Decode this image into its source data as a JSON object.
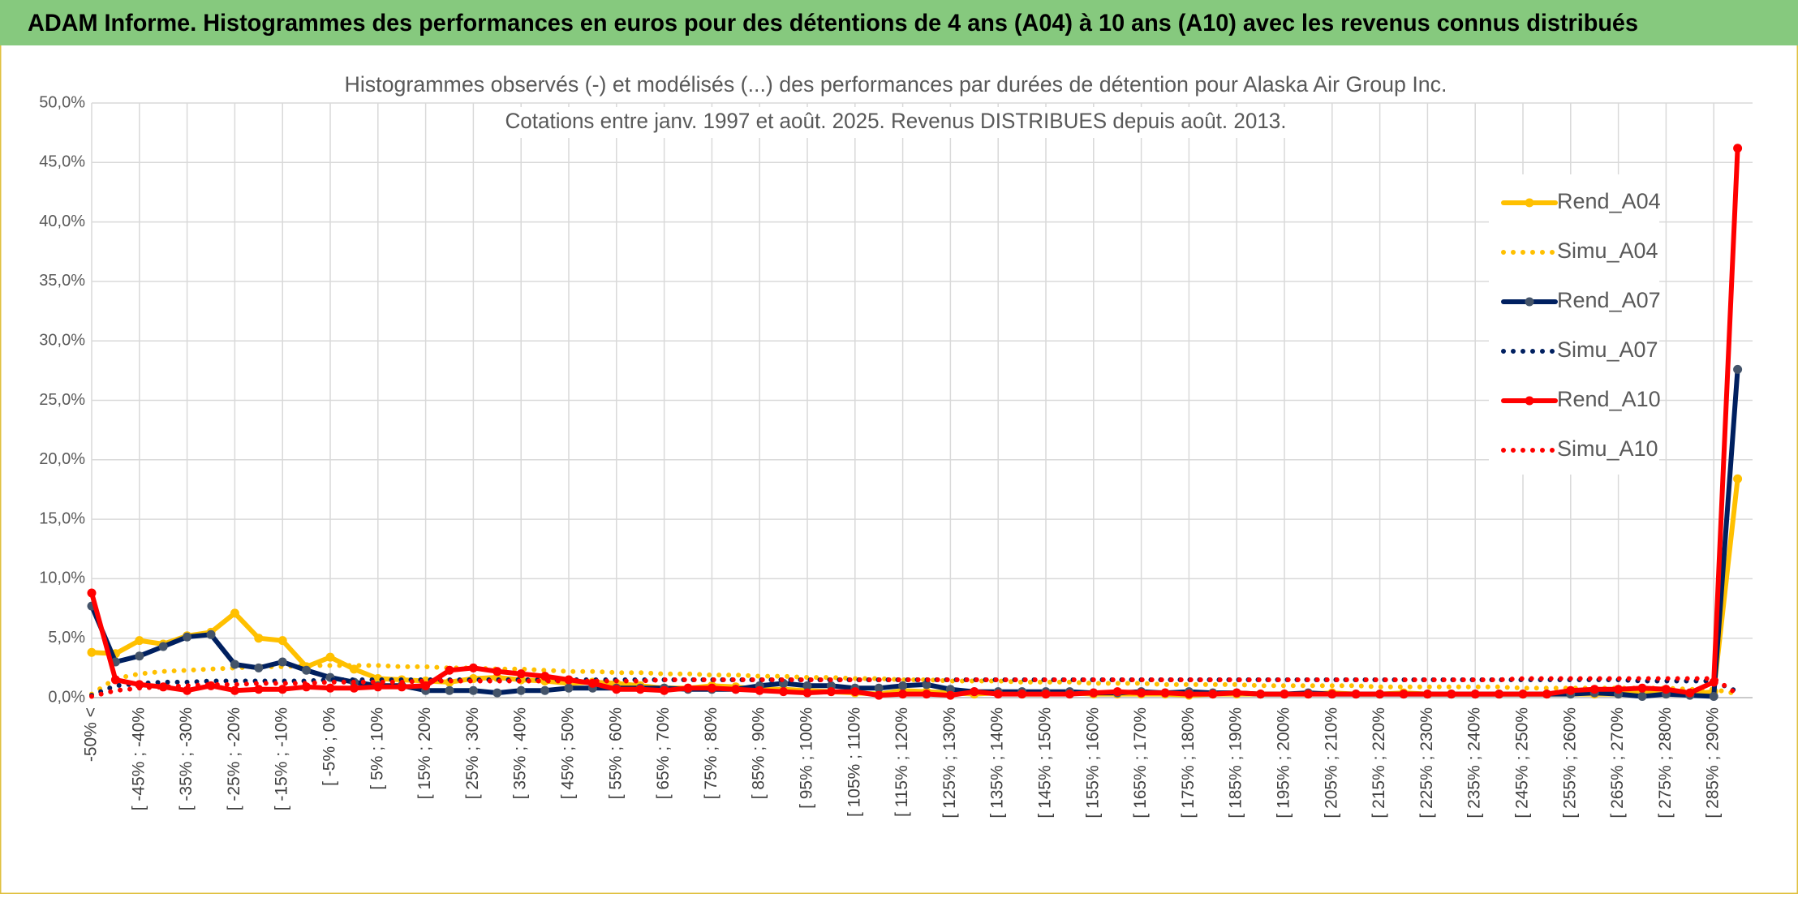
{
  "banner": "ADAM Informe. Histogrammes des performances en euros pour des détentions de 4 ans (A04) à 10 ans (A10) avec les revenus connus distribués",
  "chart_data": {
    "type": "line",
    "title": "Histogrammes observés (-) et modélisés (...) des performances par durées de détention pour Alaska Air Group Inc.",
    "subtitle": "Cotations entre janv. 1997 et août. 2025. Revenus DISTRIBUES depuis août. 2013.",
    "categories": [
      "-50% <",
      null,
      "[ -45% ; -40%",
      null,
      "[ -35% ; -30%",
      null,
      "[ -25% ; -20%",
      null,
      "[ -15% ; -10%",
      null,
      "[ -5% ; 0%",
      null,
      "[ 5% ; 10%",
      null,
      "[ 15% ; 20%",
      null,
      "[ 25% ; 30%",
      null,
      "[ 35% ; 40%",
      null,
      "[ 45% ; 50%",
      null,
      "[ 55% ; 60%",
      null,
      "[ 65% ; 70%",
      null,
      "[ 75% ; 80%",
      null,
      "[ 85% ; 90%",
      null,
      "[ 95% ; 100%",
      null,
      "[ 105% ; 110%",
      null,
      "[ 115% ; 120%",
      null,
      "[ 125% ; 130%",
      null,
      "[ 135% ; 140%",
      null,
      "[ 145% ; 150%",
      null,
      "[ 155% ; 160%",
      null,
      "[ 165% ; 170%",
      null,
      "[ 175% ; 180%",
      null,
      "[ 185% ; 190%",
      null,
      "[ 195% ; 200%",
      null,
      "[ 205% ; 210%",
      null,
      "[ 215% ; 220%",
      null,
      "[ 225% ; 230%",
      null,
      "[ 235% ; 240%",
      null,
      "[ 245% ; 250%",
      null,
      "[ 255% ; 260%",
      null,
      "[ 265% ; 270%",
      null,
      "[ 275% ; 280%",
      null,
      "[ 285% ; 290%",
      null
    ],
    "ylim": [
      0,
      50
    ],
    "yticks": [
      {
        "value": 0,
        "label": "0,0%"
      },
      {
        "value": 5,
        "label": "5,0%"
      },
      {
        "value": 10,
        "label": "10,0%"
      },
      {
        "value": 15,
        "label": "15,0%"
      },
      {
        "value": 20,
        "label": "20,0%"
      },
      {
        "value": 25,
        "label": "25,0%"
      },
      {
        "value": 30,
        "label": "30,0%"
      },
      {
        "value": 35,
        "label": "35,0%"
      },
      {
        "value": 40,
        "label": "40,0%"
      },
      {
        "value": 45,
        "label": "45,0%"
      },
      {
        "value": 50,
        "label": "50,0%"
      }
    ],
    "grid": true,
    "legend": "right",
    "series": [
      {
        "name": "Rend_A04",
        "color": "#FFC000",
        "marker_color": "#FFC000",
        "line_style": "solid",
        "values": [
          3.8,
          3.7,
          4.8,
          4.5,
          5.2,
          5.5,
          7.1,
          5.0,
          4.8,
          2.6,
          3.4,
          2.4,
          1.6,
          1.5,
          1.4,
          1.3,
          1.6,
          1.7,
          1.5,
          1.4,
          1.2,
          1.3,
          1.2,
          1.0,
          0.8,
          0.8,
          1.0,
          0.9,
          0.7,
          0.7,
          0.6,
          0.5,
          0.4,
          0.3,
          0.6,
          0.5,
          0.4,
          0.3,
          0.4,
          0.3,
          0.3,
          0.4,
          0.3,
          0.3,
          0.3,
          0.3,
          0.2,
          0.3,
          0.3,
          0.3,
          0.3,
          0.3,
          0.4,
          0.3,
          0.3,
          0.4,
          0.3,
          0.3,
          0.3,
          0.3,
          0.3,
          0.3,
          0.3,
          0.3,
          0.3,
          0.4,
          0.3,
          0.3,
          0.5,
          18.4
        ]
      },
      {
        "name": "Simu_A04",
        "color": "#FFC000",
        "line_style": "dotted",
        "values": [
          0.3,
          1.6,
          2.0,
          2.2,
          2.3,
          2.4,
          2.5,
          2.6,
          2.6,
          2.7,
          2.7,
          2.7,
          2.7,
          2.6,
          2.6,
          2.5,
          2.5,
          2.4,
          2.4,
          2.3,
          2.2,
          2.2,
          2.1,
          2.1,
          2.0,
          2.0,
          1.9,
          1.9,
          1.8,
          1.8,
          1.7,
          1.7,
          1.6,
          1.6,
          1.5,
          1.5,
          1.4,
          1.4,
          1.4,
          1.3,
          1.3,
          1.3,
          1.2,
          1.2,
          1.2,
          1.1,
          1.1,
          1.1,
          1.1,
          1.0,
          1.0,
          1.0,
          1.0,
          1.0,
          0.9,
          0.9,
          0.9,
          0.9,
          0.9,
          0.9,
          0.8,
          0.8,
          0.8,
          0.8,
          0.8,
          0.8,
          0.8,
          0.7,
          0.7,
          0.3
        ]
      },
      {
        "name": "Rend_A07",
        "color": "#002060",
        "marker_color": "#44546A",
        "line_style": "solid",
        "values": [
          7.7,
          3.0,
          3.5,
          4.3,
          5.1,
          5.3,
          2.8,
          2.5,
          3.0,
          2.3,
          1.7,
          1.3,
          1.0,
          1.0,
          0.6,
          0.6,
          0.6,
          0.4,
          0.6,
          0.6,
          0.8,
          0.8,
          0.8,
          0.8,
          0.8,
          0.7,
          0.7,
          0.7,
          1.0,
          1.2,
          1.0,
          1.0,
          0.8,
          0.8,
          1.0,
          1.1,
          0.7,
          0.5,
          0.5,
          0.5,
          0.5,
          0.5,
          0.4,
          0.4,
          0.5,
          0.4,
          0.5,
          0.4,
          0.4,
          0.3,
          0.3,
          0.4,
          0.3,
          0.3,
          0.3,
          0.3,
          0.3,
          0.3,
          0.3,
          0.3,
          0.3,
          0.3,
          0.3,
          0.4,
          0.3,
          0.1,
          0.3,
          0.2,
          0.1,
          27.6
        ]
      },
      {
        "name": "Simu_A07",
        "color": "#002060",
        "line_style": "dotted",
        "values": [
          0.2,
          1.0,
          1.2,
          1.3,
          1.3,
          1.4,
          1.4,
          1.4,
          1.4,
          1.4,
          1.5,
          1.5,
          1.5,
          1.5,
          1.5,
          1.5,
          1.5,
          1.5,
          1.5,
          1.5,
          1.5,
          1.5,
          1.5,
          1.5,
          1.5,
          1.5,
          1.5,
          1.5,
          1.5,
          1.5,
          1.5,
          1.5,
          1.5,
          1.5,
          1.5,
          1.5,
          1.5,
          1.5,
          1.5,
          1.5,
          1.5,
          1.5,
          1.5,
          1.5,
          1.5,
          1.5,
          1.5,
          1.5,
          1.5,
          1.5,
          1.5,
          1.5,
          1.5,
          1.5,
          1.5,
          1.5,
          1.5,
          1.5,
          1.5,
          1.5,
          1.5,
          1.5,
          1.5,
          1.5,
          1.5,
          1.4,
          1.4,
          1.4,
          1.4,
          0.5
        ]
      },
      {
        "name": "Rend_A10",
        "color": "#FF0000",
        "marker_color": "#FF0000",
        "line_style": "solid",
        "values": [
          8.8,
          1.5,
          1.1,
          0.9,
          0.6,
          1.0,
          0.6,
          0.7,
          0.7,
          0.9,
          0.8,
          0.8,
          0.9,
          0.9,
          1.0,
          2.3,
          2.5,
          2.2,
          2.0,
          1.8,
          1.5,
          1.2,
          0.7,
          0.7,
          0.6,
          0.8,
          0.8,
          0.7,
          0.6,
          0.5,
          0.4,
          0.5,
          0.5,
          0.2,
          0.3,
          0.3,
          0.2,
          0.5,
          0.3,
          0.3,
          0.3,
          0.3,
          0.4,
          0.5,
          0.4,
          0.4,
          0.3,
          0.3,
          0.4,
          0.3,
          0.3,
          0.3,
          0.3,
          0.3,
          0.3,
          0.3,
          0.3,
          0.3,
          0.3,
          0.3,
          0.3,
          0.3,
          0.6,
          0.7,
          0.7,
          0.8,
          0.7,
          0.4,
          1.3,
          46.2
        ]
      },
      {
        "name": "Simu_A10",
        "color": "#FF0000",
        "line_style": "dotted",
        "values": [
          0.1,
          0.6,
          0.8,
          0.9,
          1.0,
          1.1,
          1.1,
          1.2,
          1.2,
          1.2,
          1.3,
          1.3,
          1.3,
          1.3,
          1.4,
          1.4,
          1.4,
          1.4,
          1.4,
          1.4,
          1.4,
          1.4,
          1.4,
          1.4,
          1.5,
          1.5,
          1.5,
          1.5,
          1.5,
          1.5,
          1.5,
          1.5,
          1.5,
          1.5,
          1.5,
          1.5,
          1.5,
          1.5,
          1.5,
          1.5,
          1.5,
          1.5,
          1.5,
          1.5,
          1.5,
          1.5,
          1.5,
          1.5,
          1.5,
          1.5,
          1.5,
          1.5,
          1.5,
          1.5,
          1.5,
          1.5,
          1.5,
          1.5,
          1.5,
          1.5,
          1.6,
          1.6,
          1.6,
          1.6,
          1.6,
          1.6,
          1.6,
          1.6,
          1.6,
          0.3
        ]
      }
    ]
  }
}
